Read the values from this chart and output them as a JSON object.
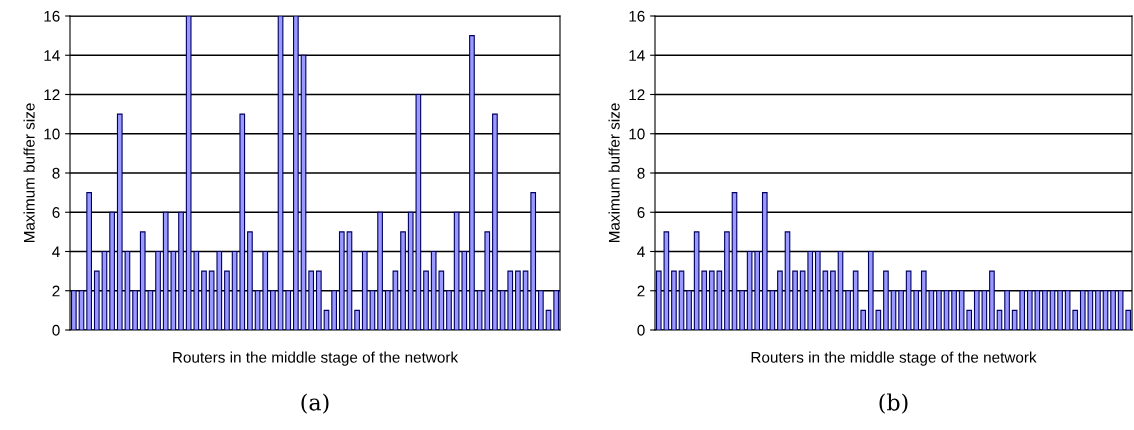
{
  "chart_data": [
    {
      "type": "bar",
      "xlabel": "Routers in the middle stage of the network",
      "ylabel": "Maximum buffer size",
      "annotations": [
        "(a)"
      ],
      "color": "#9999ff",
      "ylim": [
        0,
        16
      ],
      "yticks": [
        0,
        2,
        4,
        6,
        8,
        10,
        12,
        14,
        16
      ],
      "grid": "y",
      "categories": [
        null,
        null,
        null,
        null,
        null,
        null,
        null,
        null,
        null,
        null,
        null,
        null,
        null,
        null,
        null,
        null,
        null,
        null,
        null,
        null,
        null,
        null,
        null,
        null,
        null,
        null,
        null,
        null,
        null,
        null,
        null,
        null,
        null,
        null,
        null,
        null,
        null,
        null,
        null,
        null,
        null,
        null,
        null,
        null,
        null,
        null,
        null,
        null,
        null,
        null,
        null,
        null,
        null,
        null,
        null,
        null,
        null,
        null,
        null,
        null,
        null,
        null,
        null,
        null
      ],
      "values": [
        2,
        2,
        7,
        3,
        4,
        6,
        11,
        4,
        2,
        5,
        2,
        4,
        6,
        4,
        6,
        16,
        4,
        3,
        3,
        4,
        3,
        4,
        11,
        5,
        2,
        4,
        2,
        16,
        2,
        16,
        14,
        3,
        3,
        1,
        2,
        5,
        5,
        1,
        4,
        2,
        6,
        2,
        3,
        5,
        6,
        12,
        3,
        4,
        3,
        2,
        6,
        4,
        15,
        2,
        5,
        11,
        2,
        3,
        3,
        3,
        7,
        2,
        1,
        2
      ]
    },
    {
      "type": "bar",
      "xlabel": "Routers in the middle stage of the network",
      "ylabel": "Maximum buffer size",
      "annotations": [
        "(b)"
      ],
      "color": "#9999ff",
      "ylim": [
        0,
        16
      ],
      "yticks": [
        0,
        2,
        4,
        6,
        8,
        10,
        12,
        14,
        16
      ],
      "grid": "y",
      "categories": [
        null,
        null,
        null,
        null,
        null,
        null,
        null,
        null,
        null,
        null,
        null,
        null,
        null,
        null,
        null,
        null,
        null,
        null,
        null,
        null,
        null,
        null,
        null,
        null,
        null,
        null,
        null,
        null,
        null,
        null,
        null,
        null,
        null,
        null,
        null,
        null,
        null,
        null,
        null,
        null,
        null,
        null,
        null,
        null,
        null,
        null,
        null,
        null,
        null,
        null,
        null,
        null,
        null,
        null,
        null,
        null,
        null,
        null,
        null,
        null,
        null,
        null,
        null
      ],
      "values": [
        3,
        5,
        3,
        3,
        2,
        5,
        3,
        3,
        3,
        5,
        7,
        2,
        4,
        4,
        7,
        2,
        3,
        5,
        3,
        3,
        4,
        4,
        3,
        3,
        4,
        2,
        3,
        1,
        4,
        1,
        3,
        2,
        2,
        3,
        2,
        3,
        2,
        2,
        2,
        2,
        2,
        1,
        2,
        2,
        3,
        1,
        2,
        1,
        2,
        2,
        2,
        2,
        2,
        2,
        2,
        1,
        2,
        2,
        2,
        2,
        2,
        2,
        1
      ]
    }
  ]
}
